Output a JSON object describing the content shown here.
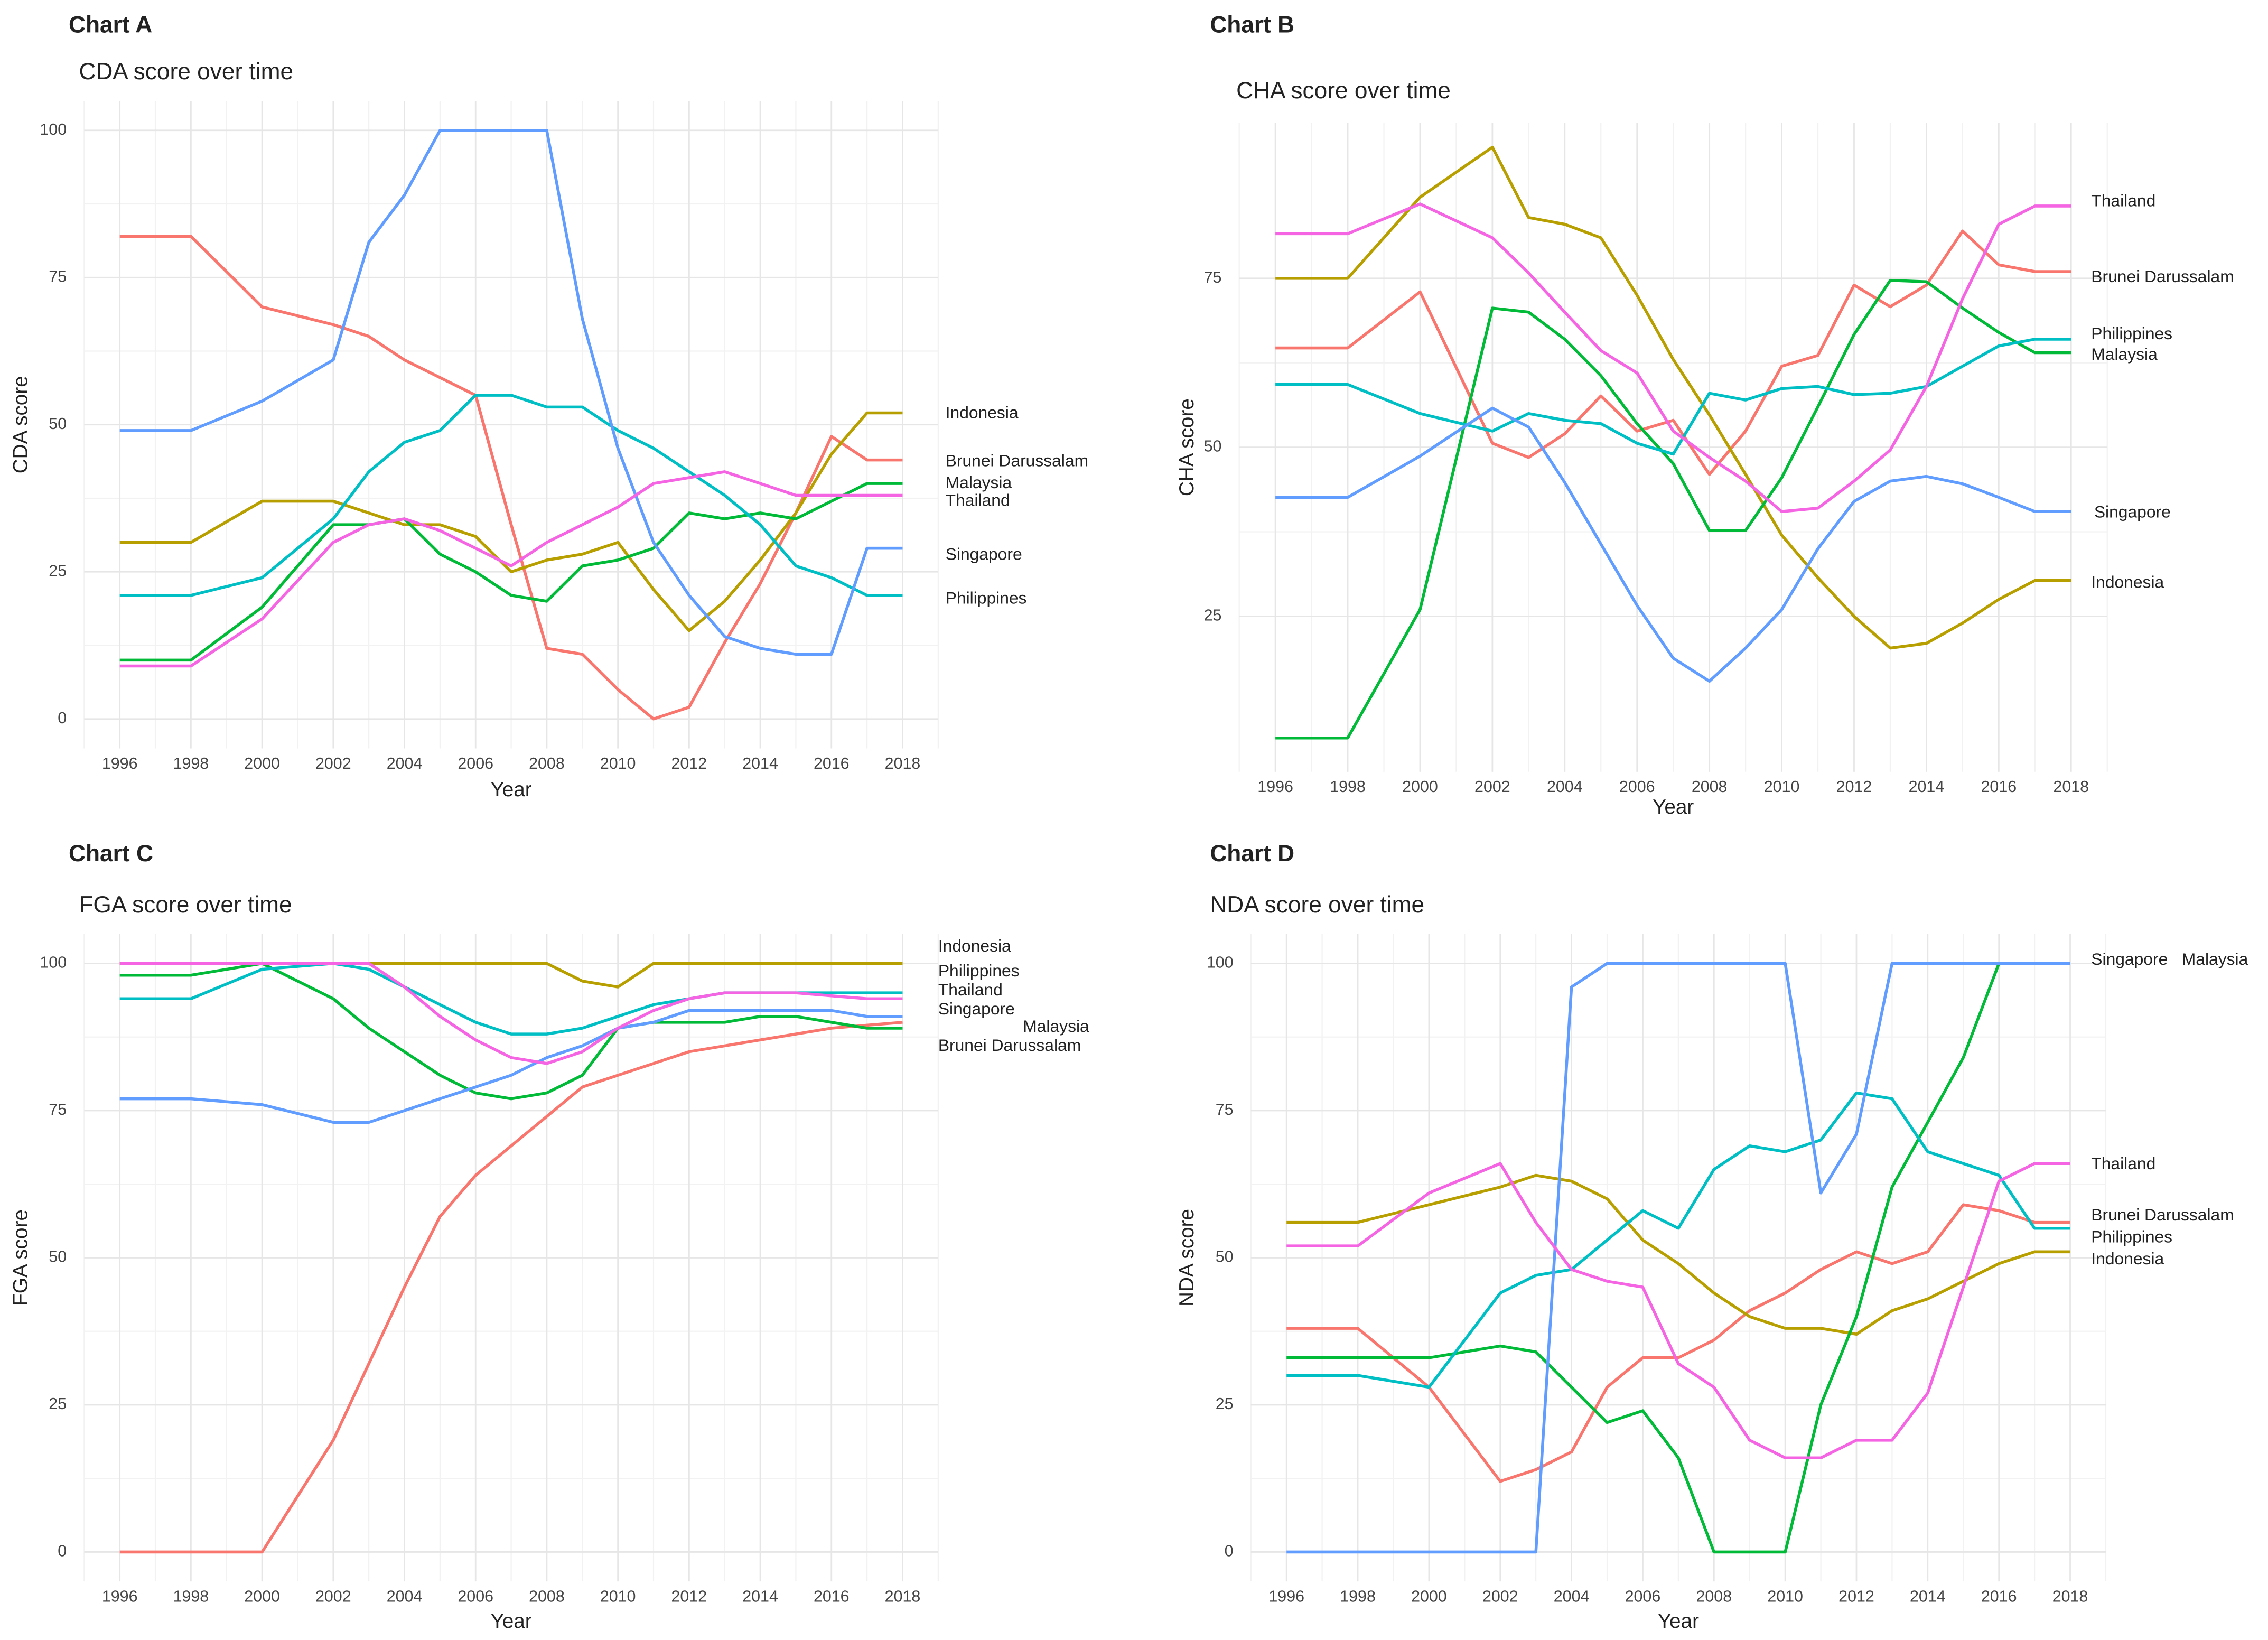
{
  "chart_data": [
    {
      "type": "line",
      "title": "Chart A",
      "subtitle": "CDA score over time",
      "xlabel": "Year",
      "ylabel": "CDA score",
      "grid": true,
      "x": [
        1996,
        1998,
        2000,
        2002,
        2003,
        2004,
        2005,
        2006,
        2007,
        2008,
        2009,
        2010,
        2011,
        2012,
        2013,
        2014,
        2015,
        2016,
        2017,
        2018
      ],
      "xlim": [
        1995,
        2019
      ],
      "xticks": [
        1996,
        1998,
        2000,
        2002,
        2004,
        2006,
        2008,
        2010,
        2012,
        2014,
        2016,
        2018
      ],
      "ylim": [
        -5,
        105
      ],
      "yticks": [
        0,
        25,
        50,
        75,
        100
      ],
      "series": [
        {
          "name": "Brunei Darussalam",
          "color": "#F8766D",
          "values": [
            82,
            82,
            70,
            67,
            65,
            61,
            58,
            55,
            33,
            12,
            11,
            5,
            0,
            2,
            13,
            23,
            35,
            48,
            44,
            44
          ]
        },
        {
          "name": "Indonesia",
          "color": "#B79F00",
          "values": [
            30,
            30,
            37,
            37,
            35,
            33,
            33,
            31,
            25,
            27,
            28,
            30,
            22,
            15,
            20,
            27,
            35,
            45,
            52,
            52
          ]
        },
        {
          "name": "Malaysia",
          "color": "#00BA38",
          "values": [
            10,
            10,
            19,
            33,
            33,
            34,
            28,
            25,
            21,
            20,
            26,
            27,
            29,
            35,
            34,
            35,
            34,
            37,
            40,
            40
          ]
        },
        {
          "name": "Philippines",
          "color": "#00BFC4",
          "values": [
            21,
            21,
            24,
            34,
            42,
            47,
            49,
            55,
            55,
            53,
            53,
            49,
            46,
            42,
            38,
            33,
            26,
            24,
            21,
            21
          ]
        },
        {
          "name": "Singapore",
          "color": "#619CFF",
          "values": [
            49,
            49,
            54,
            61,
            81,
            89,
            100,
            100,
            100,
            100,
            68,
            46,
            30,
            21,
            14,
            12,
            11,
            11,
            29,
            29
          ]
        },
        {
          "name": "Thailand",
          "color": "#F564E3",
          "values": [
            9,
            9,
            17,
            30,
            33,
            34,
            32,
            29,
            26,
            30,
            33,
            36,
            40,
            41,
            42,
            40,
            38,
            38,
            38,
            38
          ]
        }
      ]
    },
    {
      "type": "line",
      "title": "Chart B",
      "subtitle": "CHA score over time",
      "xlabel": "Year",
      "ylabel": "CHA score",
      "grid": true,
      "x": [
        1996,
        1998,
        2000,
        2002,
        2003,
        2004,
        2005,
        2006,
        2007,
        2008,
        2009,
        2010,
        2011,
        2012,
        2013,
        2014,
        2015,
        2016,
        2017,
        2018
      ],
      "xlim": [
        1995,
        2019
      ],
      "xticks": [
        1996,
        1998,
        2000,
        2002,
        2004,
        2006,
        2008,
        2010,
        2012,
        2014,
        2016,
        2018
      ],
      "ylim": [
        2,
        98
      ],
      "yticks": [
        25,
        50,
        75
      ],
      "series": [
        {
          "name": "Brunei Darussalam",
          "color": "#F8766D",
          "values": [
            64.7,
            64.7,
            73,
            50.6,
            48.5,
            52,
            57.6,
            52.4,
            54,
            46,
            52.4,
            62,
            63.6,
            74,
            70.8,
            74,
            82,
            77,
            76,
            76
          ]
        },
        {
          "name": "Indonesia",
          "color": "#B79F00",
          "values": [
            75,
            75,
            87,
            94.4,
            84,
            83,
            81,
            72.5,
            63,
            54.8,
            46,
            37,
            30.7,
            25,
            20.3,
            21,
            24,
            27.5,
            30.3,
            30.3
          ]
        },
        {
          "name": "Malaysia",
          "color": "#00BA38",
          "values": [
            7,
            7,
            26,
            70.6,
            70,
            66,
            60.6,
            53.5,
            47.6,
            37.7,
            37.7,
            45.5,
            56,
            66.7,
            74.7,
            74.5,
            70.6,
            67,
            64,
            64
          ]
        },
        {
          "name": "Philippines",
          "color": "#00BFC4",
          "values": [
            59.3,
            59.3,
            55,
            52.4,
            55,
            54,
            53.5,
            50.6,
            49,
            58,
            57,
            58.7,
            59,
            57.8,
            58,
            59,
            62,
            65,
            66,
            66
          ]
        },
        {
          "name": "Singapore",
          "color": "#619CFF",
          "values": [
            42.6,
            42.6,
            48.7,
            55.8,
            53,
            44.8,
            35.7,
            26.6,
            18.8,
            15.4,
            20.3,
            26,
            35,
            42,
            45,
            45.7,
            44.6,
            42.6,
            40.5,
            40.5
          ]
        },
        {
          "name": "Thailand",
          "color": "#F564E3",
          "values": [
            81.6,
            81.6,
            86,
            81,
            75.8,
            70,
            64.3,
            61,
            52.4,
            48.5,
            45,
            40.5,
            41,
            45,
            49.6,
            59,
            72,
            83,
            85.7,
            85.7
          ]
        }
      ]
    },
    {
      "type": "line",
      "title": "Chart C",
      "subtitle": "FGA score over time",
      "xlabel": "Year",
      "ylabel": "FGA score",
      "grid": true,
      "x": [
        1996,
        1998,
        2000,
        2002,
        2003,
        2004,
        2005,
        2006,
        2007,
        2008,
        2009,
        2010,
        2011,
        2012,
        2013,
        2014,
        2015,
        2016,
        2017,
        2018
      ],
      "xlim": [
        1995,
        2019
      ],
      "xticks": [
        1996,
        1998,
        2000,
        2002,
        2004,
        2006,
        2008,
        2010,
        2012,
        2014,
        2016,
        2018
      ],
      "ylim": [
        -5,
        105
      ],
      "yticks": [
        0,
        25,
        50,
        75,
        100
      ],
      "series": [
        {
          "name": "Brunei Darussalam",
          "color": "#F8766D",
          "values": [
            0,
            0,
            0,
            19,
            32,
            45,
            57,
            64,
            69,
            74,
            79,
            81,
            83,
            85,
            86,
            87,
            88,
            89,
            89.5,
            90
          ]
        },
        {
          "name": "Indonesia",
          "color": "#B79F00",
          "values": [
            100,
            100,
            100,
            100,
            100,
            100,
            100,
            100,
            100,
            100,
            97,
            96,
            100,
            100,
            100,
            100,
            100,
            100,
            100,
            100
          ]
        },
        {
          "name": "Malaysia",
          "color": "#00BA38",
          "values": [
            98,
            98,
            100,
            94,
            89,
            85,
            81,
            78,
            77,
            78,
            81,
            89,
            90,
            90,
            90,
            91,
            91,
            90,
            89,
            89
          ]
        },
        {
          "name": "Philippines",
          "color": "#00BFC4",
          "values": [
            94,
            94,
            99,
            100,
            99,
            96,
            93,
            90,
            88,
            88,
            89,
            91,
            93,
            94,
            95,
            95,
            95,
            95,
            95,
            95
          ]
        },
        {
          "name": "Singapore",
          "color": "#619CFF",
          "values": [
            77,
            77,
            76,
            73,
            73,
            75,
            77,
            79,
            81,
            84,
            86,
            89,
            90,
            92,
            92,
            92,
            92,
            92,
            91,
            91
          ]
        },
        {
          "name": "Thailand",
          "color": "#F564E3",
          "values": [
            100,
            100,
            100,
            100,
            100,
            96,
            91,
            87,
            84,
            83,
            85,
            89,
            92,
            94,
            95,
            95,
            95,
            94.5,
            94,
            94
          ]
        }
      ]
    },
    {
      "type": "line",
      "title": "Chart D",
      "subtitle": "NDA score over time",
      "xlabel": "Year",
      "ylabel": "NDA score",
      "grid": true,
      "x": [
        1996,
        1998,
        2000,
        2002,
        2003,
        2004,
        2005,
        2006,
        2007,
        2008,
        2009,
        2010,
        2011,
        2012,
        2013,
        2014,
        2015,
        2016,
        2017,
        2018
      ],
      "xlim": [
        1995,
        2019
      ],
      "xticks": [
        1996,
        1998,
        2000,
        2002,
        2004,
        2006,
        2008,
        2010,
        2012,
        2014,
        2016,
        2018
      ],
      "ylim": [
        -5,
        105
      ],
      "yticks": [
        0,
        25,
        50,
        75,
        100
      ],
      "series": [
        {
          "name": "Brunei Darussalam",
          "color": "#F8766D",
          "values": [
            38,
            38,
            28,
            12,
            14,
            17,
            28,
            33,
            33,
            36,
            41,
            44,
            48,
            51,
            49,
            51,
            59,
            58,
            56,
            56
          ]
        },
        {
          "name": "Indonesia",
          "color": "#B79F00",
          "values": [
            56,
            56,
            59,
            62,
            64,
            63,
            60,
            53,
            49,
            44,
            40,
            38,
            38,
            37,
            41,
            43,
            46,
            49,
            51,
            51
          ]
        },
        {
          "name": "Malaysia",
          "color": "#00BA38",
          "values": [
            33,
            33,
            33,
            35,
            34,
            28,
            22,
            24,
            16,
            0,
            0,
            0,
            25,
            40,
            62,
            73,
            84,
            100,
            100,
            100
          ]
        },
        {
          "name": "Philippines",
          "color": "#00BFC4",
          "values": [
            30,
            30,
            28,
            44,
            47,
            48,
            53,
            58,
            55,
            65,
            69,
            68,
            70,
            78,
            77,
            68,
            66,
            64,
            55,
            55
          ]
        },
        {
          "name": "Singapore",
          "color": "#619CFF",
          "values": [
            0,
            0,
            0,
            0,
            0,
            96,
            100,
            100,
            100,
            100,
            100,
            100,
            61,
            71,
            100,
            100,
            100,
            100,
            100,
            100
          ]
        },
        {
          "name": "Thailand",
          "color": "#F564E3",
          "values": [
            52,
            52,
            61,
            66,
            56,
            48,
            46,
            45,
            32,
            28,
            19,
            16,
            16,
            19,
            19,
            27,
            45,
            63,
            66,
            66
          ]
        }
      ]
    }
  ]
}
